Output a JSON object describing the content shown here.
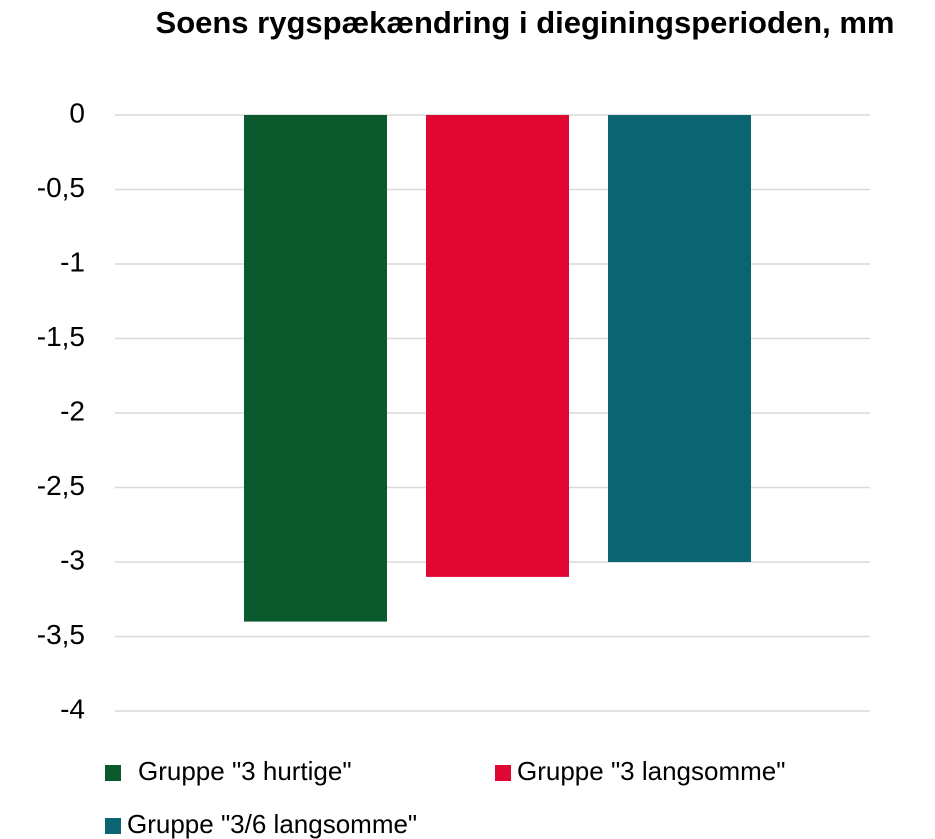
{
  "chart_data": {
    "type": "bar",
    "title": "Soens rygspækændring i dieginingsperioden, mm",
    "categories": [
      null
    ],
    "series": [
      {
        "name": "Gruppe \"3 hurtige\"",
        "color": "#0b5a2e",
        "values": [
          -3.4
        ]
      },
      {
        "name": "Gruppe \"3 langsomme\"",
        "color": "#e00732",
        "values": [
          -3.1
        ]
      },
      {
        "name": "Gruppe \"3/6 langsomme\"",
        "color": "#0a6472",
        "values": [
          -3.0
        ]
      }
    ],
    "ylim": [
      -4,
      0
    ],
    "yticks": [
      0,
      {
        "value": -0.5,
        "label": "-0,5"
      },
      -1,
      {
        "value": -1.5,
        "label": "-1,5"
      },
      -2,
      {
        "value": -2.5,
        "label": "-2,5"
      },
      -3,
      {
        "value": -3.5,
        "label": "-3,5"
      },
      -4
    ],
    "grid": true,
    "legend": "bottom"
  }
}
